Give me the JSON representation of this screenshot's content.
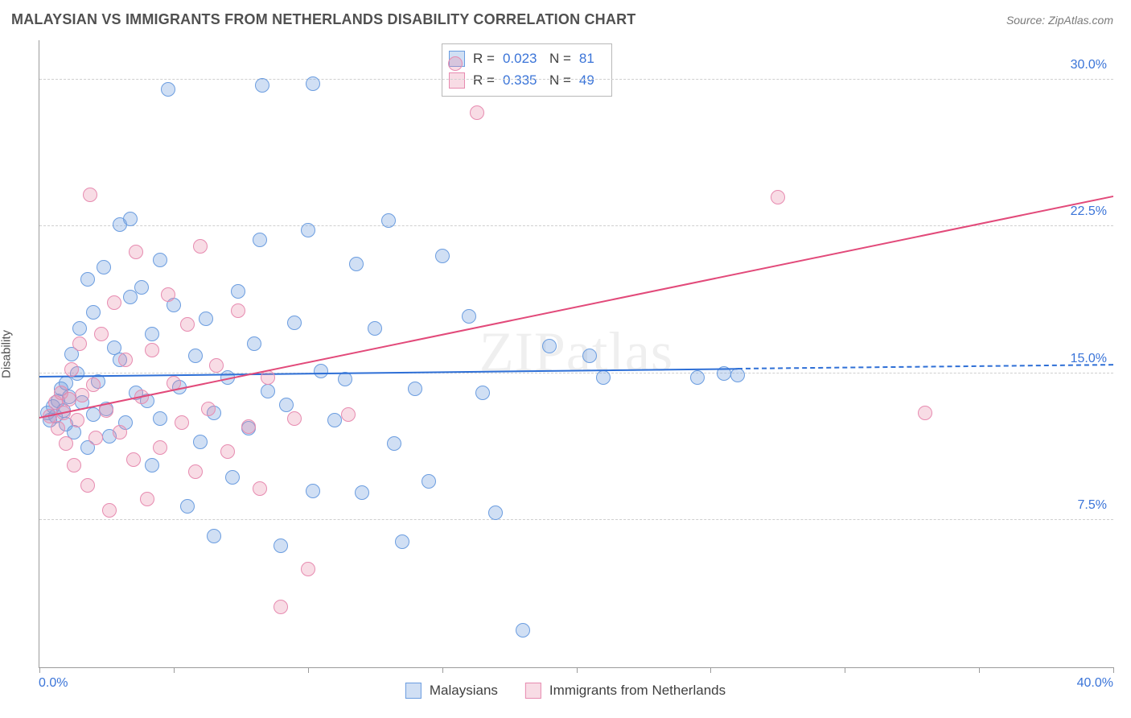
{
  "title": "MALAYSIAN VS IMMIGRANTS FROM NETHERLANDS DISABILITY CORRELATION CHART",
  "source_label": "Source: ZipAtlas.com",
  "watermark": "ZIPatlas",
  "ylabel": "Disability",
  "chart": {
    "type": "scatter",
    "xlim": [
      0,
      40
    ],
    "ylim": [
      0,
      32
    ],
    "x_axis_min_label": "0.0%",
    "x_axis_max_label": "40.0%",
    "y_ticks": [
      7.5,
      15.0,
      22.5,
      30.0
    ],
    "y_tick_labels": [
      "7.5%",
      "15.0%",
      "22.5%",
      "30.0%"
    ],
    "x_tick_positions": [
      0,
      5,
      10,
      15,
      20,
      25,
      30,
      35,
      40
    ],
    "grid_color": "#cfcfcf",
    "axis_color": "#9b9b9b",
    "background_color": "#ffffff",
    "marker_radius": 9,
    "marker_border_width": 1.5,
    "series": [
      {
        "name": "Malaysians",
        "fill": "rgba(120,164,224,0.35)",
        "stroke": "#6b9de0",
        "trend_color": "#2e6fd6",
        "trend": {
          "x1": 0,
          "y1": 14.8,
          "x2": 26,
          "y2": 15.2,
          "solid": true
        },
        "trend_ext": {
          "x1": 26,
          "y1": 15.2,
          "x2": 40,
          "y2": 15.4,
          "solid": false
        },
        "R": "0.023",
        "N": "81",
        "points": [
          [
            0.3,
            13.0
          ],
          [
            0.4,
            12.6
          ],
          [
            0.5,
            13.3
          ],
          [
            0.6,
            12.8
          ],
          [
            0.7,
            13.6
          ],
          [
            0.8,
            14.2
          ],
          [
            0.9,
            13.1
          ],
          [
            1.0,
            12.4
          ],
          [
            1.0,
            14.5
          ],
          [
            1.1,
            13.8
          ],
          [
            1.2,
            16.0
          ],
          [
            1.3,
            12.0
          ],
          [
            1.4,
            15.0
          ],
          [
            1.5,
            17.3
          ],
          [
            1.6,
            13.5
          ],
          [
            1.8,
            11.2
          ],
          [
            1.8,
            19.8
          ],
          [
            2.0,
            18.1
          ],
          [
            2.0,
            12.9
          ],
          [
            2.2,
            14.6
          ],
          [
            2.4,
            20.4
          ],
          [
            2.5,
            13.2
          ],
          [
            2.6,
            11.8
          ],
          [
            2.8,
            16.3
          ],
          [
            3.0,
            22.6
          ],
          [
            3.0,
            15.7
          ],
          [
            3.2,
            12.5
          ],
          [
            3.4,
            22.9
          ],
          [
            3.4,
            18.9
          ],
          [
            3.6,
            14.0
          ],
          [
            3.8,
            19.4
          ],
          [
            4.0,
            13.6
          ],
          [
            4.2,
            10.3
          ],
          [
            4.2,
            17.0
          ],
          [
            4.5,
            12.7
          ],
          [
            4.5,
            20.8
          ],
          [
            4.8,
            29.5
          ],
          [
            5.0,
            18.5
          ],
          [
            5.2,
            14.3
          ],
          [
            5.5,
            8.2
          ],
          [
            5.8,
            15.9
          ],
          [
            6.0,
            11.5
          ],
          [
            6.2,
            17.8
          ],
          [
            6.5,
            13.0
          ],
          [
            6.5,
            6.7
          ],
          [
            7.0,
            14.8
          ],
          [
            7.2,
            9.7
          ],
          [
            7.4,
            19.2
          ],
          [
            7.8,
            12.2
          ],
          [
            8.0,
            16.5
          ],
          [
            8.2,
            21.8
          ],
          [
            8.3,
            29.7
          ],
          [
            8.5,
            14.1
          ],
          [
            9.0,
            6.2
          ],
          [
            9.2,
            13.4
          ],
          [
            9.5,
            17.6
          ],
          [
            10.0,
            22.3
          ],
          [
            10.2,
            9.0
          ],
          [
            10.2,
            29.8
          ],
          [
            10.5,
            15.1
          ],
          [
            11.0,
            12.6
          ],
          [
            11.4,
            14.7
          ],
          [
            11.8,
            20.6
          ],
          [
            12.0,
            8.9
          ],
          [
            12.5,
            17.3
          ],
          [
            13.0,
            22.8
          ],
          [
            13.2,
            11.4
          ],
          [
            13.5,
            6.4
          ],
          [
            14.0,
            14.2
          ],
          [
            14.5,
            9.5
          ],
          [
            15.0,
            21.0
          ],
          [
            16.0,
            17.9
          ],
          [
            16.5,
            14.0
          ],
          [
            17.0,
            7.9
          ],
          [
            18.0,
            1.9
          ],
          [
            19.0,
            16.4
          ],
          [
            20.5,
            15.9
          ],
          [
            21.0,
            14.8
          ],
          [
            24.5,
            14.8
          ],
          [
            25.5,
            15.0
          ],
          [
            26.0,
            14.9
          ]
        ]
      },
      {
        "name": "Immigrants from Netherlands",
        "fill": "rgba(233,140,170,0.30)",
        "stroke": "#e78bb0",
        "trend_color": "#e24a7a",
        "trend": {
          "x1": 0,
          "y1": 12.7,
          "x2": 40,
          "y2": 24.0,
          "solid": true
        },
        "R": "0.335",
        "N": "49",
        "points": [
          [
            0.4,
            12.8
          ],
          [
            0.6,
            13.5
          ],
          [
            0.7,
            12.2
          ],
          [
            0.8,
            14.0
          ],
          [
            0.9,
            13.0
          ],
          [
            1.0,
            11.4
          ],
          [
            1.1,
            13.7
          ],
          [
            1.2,
            15.2
          ],
          [
            1.3,
            10.3
          ],
          [
            1.4,
            12.6
          ],
          [
            1.5,
            16.5
          ],
          [
            1.6,
            13.9
          ],
          [
            1.8,
            9.3
          ],
          [
            1.9,
            24.1
          ],
          [
            2.0,
            14.4
          ],
          [
            2.1,
            11.7
          ],
          [
            2.3,
            17.0
          ],
          [
            2.5,
            13.1
          ],
          [
            2.6,
            8.0
          ],
          [
            2.8,
            18.6
          ],
          [
            3.0,
            12.0
          ],
          [
            3.2,
            15.7
          ],
          [
            3.5,
            10.6
          ],
          [
            3.6,
            21.2
          ],
          [
            3.8,
            13.8
          ],
          [
            4.0,
            8.6
          ],
          [
            4.2,
            16.2
          ],
          [
            4.5,
            11.2
          ],
          [
            4.8,
            19.0
          ],
          [
            5.0,
            14.5
          ],
          [
            5.3,
            12.5
          ],
          [
            5.5,
            17.5
          ],
          [
            5.8,
            10.0
          ],
          [
            6.0,
            21.5
          ],
          [
            6.3,
            13.2
          ],
          [
            6.6,
            15.4
          ],
          [
            7.0,
            11.0
          ],
          [
            7.4,
            18.2
          ],
          [
            7.8,
            12.3
          ],
          [
            8.2,
            9.1
          ],
          [
            8.5,
            14.8
          ],
          [
            9.0,
            3.1
          ],
          [
            9.5,
            12.7
          ],
          [
            10.0,
            5.0
          ],
          [
            11.5,
            12.9
          ],
          [
            15.5,
            30.8
          ],
          [
            16.3,
            28.3
          ],
          [
            27.5,
            24.0
          ],
          [
            33.0,
            13.0
          ]
        ]
      }
    ]
  },
  "legend_top": {
    "rows": [
      {
        "swatch_fill": "rgba(120,164,224,0.35)",
        "swatch_stroke": "#6b9de0",
        "r_label": "R =",
        "r_val": "0.023",
        "n_label": "N =",
        "n_val": "81"
      },
      {
        "swatch_fill": "rgba(233,140,170,0.30)",
        "swatch_stroke": "#e78bb0",
        "r_label": "R =",
        "r_val": "0.335",
        "n_label": "N =",
        "n_val": "49"
      }
    ]
  },
  "legend_bottom": [
    {
      "swatch_fill": "rgba(120,164,224,0.35)",
      "swatch_stroke": "#6b9de0",
      "label": "Malaysians"
    },
    {
      "swatch_fill": "rgba(233,140,170,0.30)",
      "swatch_stroke": "#e78bb0",
      "label": "Immigrants from Netherlands"
    }
  ]
}
